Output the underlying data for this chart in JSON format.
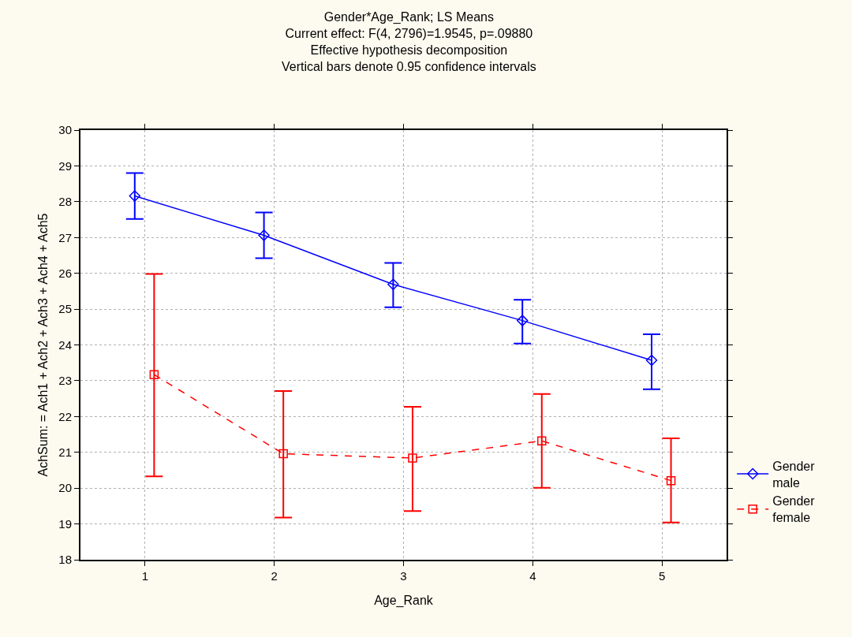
{
  "chart_data": {
    "type": "line",
    "title": "Gender*Age_Rank; LS Means\nCurrent effect: F(4, 2796)=1.9545, p=.09880\nEffective hypothesis decomposition\nVertical bars denote 0.95 confidence intervals",
    "xlabel": "Age_Rank",
    "ylabel": "AchSum: = Ach1 + Ach2 + Ach3 + Ach4 + Ach5",
    "xlim": [
      0.5,
      5.5
    ],
    "xticks": [
      1,
      2,
      3,
      4,
      5
    ],
    "ylim": [
      18,
      30
    ],
    "yticks": [
      18,
      19,
      20,
      21,
      22,
      23,
      24,
      25,
      26,
      27,
      28,
      29,
      30
    ],
    "grid": true,
    "legend": "bottom right",
    "series": [
      {
        "name": "Gender\nmale",
        "color": "#0000ff",
        "marker": "diamond",
        "line_style": "solid",
        "x": [
          0.92,
          1.92,
          2.92,
          3.92,
          4.92
        ],
        "values": [
          28.16,
          27.06,
          25.69,
          24.68,
          23.57
        ],
        "errors": [
          [
            27.52,
            28.8
          ],
          [
            26.42,
            27.7
          ],
          [
            25.05,
            26.29
          ],
          [
            24.04,
            25.26
          ],
          [
            22.76,
            24.3
          ]
        ]
      },
      {
        "name": "Gender\nfemale",
        "color": "#ff0000",
        "marker": "square",
        "line_style": "dashed",
        "x": [
          1.07,
          2.07,
          3.07,
          4.07,
          5.07
        ],
        "values": [
          23.17,
          20.96,
          20.84,
          21.32,
          20.21
        ],
        "errors": [
          [
            20.33,
            25.98
          ],
          [
            19.18,
            22.71
          ],
          [
            19.36,
            22.27
          ],
          [
            20.01,
            22.63
          ],
          [
            19.04,
            21.39
          ]
        ]
      }
    ]
  }
}
